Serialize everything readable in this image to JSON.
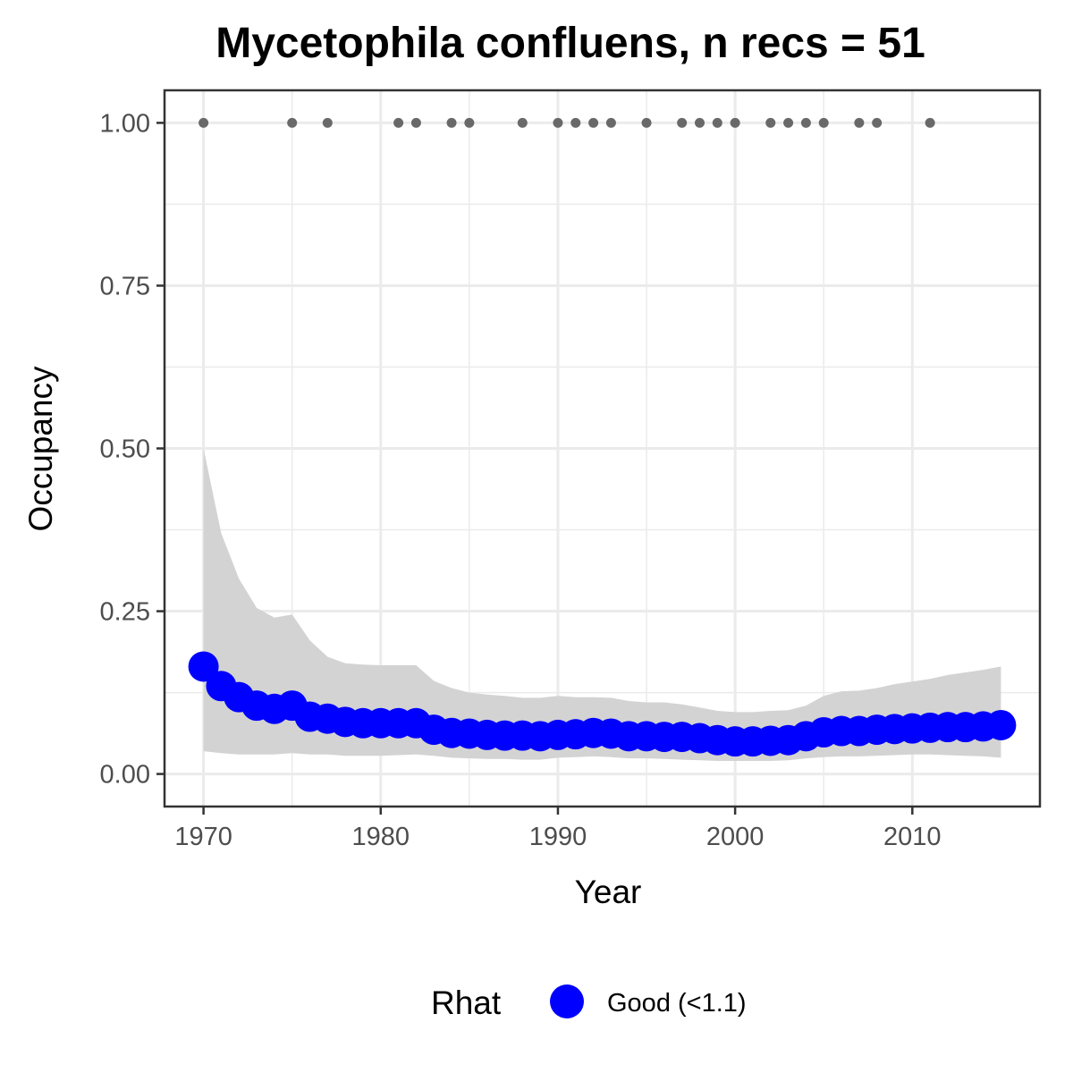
{
  "chart_data": {
    "type": "line",
    "title": "Mycetophila confluens, n recs = 51",
    "xlabel": "Year",
    "ylabel": "Occupancy",
    "xlim": [
      1967.8,
      2017.2
    ],
    "ylim": [
      -0.05,
      1.05
    ],
    "x_ticks": [
      1970,
      1980,
      1990,
      2000,
      2010
    ],
    "x_tick_labels": [
      "1970",
      "1980",
      "1990",
      "2000",
      "2010"
    ],
    "y_ticks": [
      0,
      0.25,
      0.5,
      0.75,
      1
    ],
    "y_tick_labels": [
      "0.00",
      "0.25",
      "0.50",
      "0.75",
      "1.00"
    ],
    "grid": true,
    "legend_position": "bottom",
    "legend": {
      "title": "Rhat",
      "entries": [
        {
          "label": "Good (<1.1)",
          "color": "#0000ff"
        }
      ]
    },
    "colors": {
      "occupancy": "#0000ff",
      "ribbon": "#d3d3d3",
      "records": "#696969",
      "panel_border": "#333333",
      "grid": "#ebebeb"
    },
    "series": [
      {
        "name": "Good (<1.1)",
        "x": [
          1970,
          1971,
          1972,
          1973,
          1974,
          1975,
          1976,
          1977,
          1978,
          1979,
          1980,
          1981,
          1982,
          1983,
          1984,
          1985,
          1986,
          1987,
          1988,
          1989,
          1990,
          1991,
          1992,
          1993,
          1994,
          1995,
          1996,
          1997,
          1998,
          1999,
          2000,
          2001,
          2002,
          2003,
          2004,
          2005,
          2006,
          2007,
          2008,
          2009,
          2010,
          2011,
          2012,
          2013,
          2014,
          2015
        ],
        "y": [
          0.165,
          0.135,
          0.118,
          0.105,
          0.1,
          0.105,
          0.088,
          0.085,
          0.08,
          0.078,
          0.078,
          0.078,
          0.078,
          0.068,
          0.063,
          0.062,
          0.06,
          0.059,
          0.059,
          0.058,
          0.06,
          0.061,
          0.063,
          0.062,
          0.058,
          0.058,
          0.057,
          0.057,
          0.055,
          0.052,
          0.05,
          0.05,
          0.051,
          0.052,
          0.058,
          0.064,
          0.066,
          0.066,
          0.068,
          0.069,
          0.07,
          0.071,
          0.072,
          0.072,
          0.073,
          0.075
        ],
        "lower": [
          0.035,
          0.032,
          0.03,
          0.03,
          0.03,
          0.032,
          0.03,
          0.03,
          0.028,
          0.028,
          0.028,
          0.029,
          0.03,
          0.028,
          0.025,
          0.024,
          0.023,
          0.023,
          0.022,
          0.022,
          0.025,
          0.026,
          0.027,
          0.026,
          0.024,
          0.024,
          0.023,
          0.022,
          0.021,
          0.02,
          0.02,
          0.02,
          0.02,
          0.021,
          0.024,
          0.026,
          0.027,
          0.027,
          0.028,
          0.029,
          0.03,
          0.03,
          0.029,
          0.028,
          0.027,
          0.025
        ],
        "upper": [
          0.5,
          0.37,
          0.3,
          0.255,
          0.24,
          0.245,
          0.205,
          0.18,
          0.17,
          0.168,
          0.167,
          0.167,
          0.167,
          0.143,
          0.132,
          0.125,
          0.122,
          0.12,
          0.117,
          0.117,
          0.12,
          0.118,
          0.118,
          0.117,
          0.112,
          0.11,
          0.11,
          0.107,
          0.102,
          0.097,
          0.095,
          0.095,
          0.097,
          0.098,
          0.105,
          0.12,
          0.127,
          0.128,
          0.132,
          0.138,
          0.142,
          0.146,
          0.152,
          0.156,
          0.16,
          0.165
        ]
      }
    ],
    "records": {
      "x": [
        1970,
        1975,
        1977,
        1981,
        1982,
        1984,
        1985,
        1988,
        1990,
        1991,
        1992,
        1993,
        1995,
        1997,
        1998,
        1999,
        2000,
        2002,
        2003,
        2004,
        2005,
        2007,
        2008,
        2011
      ],
      "y": [
        1,
        1,
        1,
        1,
        1,
        1,
        1,
        1,
        1,
        1,
        1,
        1,
        1,
        1,
        1,
        1,
        1,
        1,
        1,
        1,
        1,
        1,
        1,
        1
      ]
    }
  }
}
